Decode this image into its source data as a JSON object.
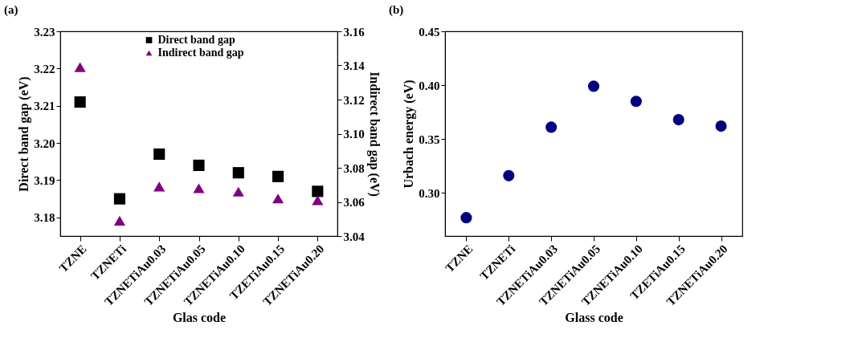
{
  "chart_data": [
    {
      "type": "scatter",
      "title": "(a)",
      "xlabel": "Glas code",
      "ylabel": "Direct band gap (eV)",
      "y2label": "Indirect band gap (eV)",
      "categories": [
        "TZNE",
        "TZNETi",
        "TZNETiAu0.03",
        "TZNETiAu0.05",
        "TZNETiAu0.10",
        "TZETiAu0.15",
        "TZNETiAu0.20"
      ],
      "series": [
        {
          "name": "Direct band gap",
          "color": "#000000",
          "marker": "square",
          "values": [
            3.211,
            3.185,
            3.197,
            3.194,
            3.192,
            3.191,
            3.187
          ]
        },
        {
          "name": "Indirect band gap",
          "color": "#800080",
          "marker": "triangle",
          "axis": "y2",
          "values": [
            3.139,
            3.049,
            3.069,
            3.068,
            3.066,
            3.062,
            3.061
          ]
        }
      ],
      "ylim": [
        3.175,
        3.23
      ],
      "yticks": [
        3.18,
        3.19,
        {
          "value": 3.2,
          "label": "3.20"
        },
        3.21,
        3.22,
        3.23
      ],
      "y2lim": [
        3.04,
        3.16
      ],
      "y2ticks": [
        3.04,
        3.06,
        3.08,
        {
          "value": 3.1,
          "label": "3.10"
        },
        3.12,
        3.14,
        3.16
      ],
      "legend": "top",
      "grid": false
    },
    {
      "type": "scatter",
      "title": "(b)",
      "xlabel": "Glass code",
      "ylabel": "Urbach energy (eV)",
      "categories": [
        "TZNE",
        "TZNETi",
        "TZNETiAu0.03",
        "TZNETiAu0.05",
        "TZNETiAu0.10",
        "TZETiAu0.15",
        "TZNETiAu0.20"
      ],
      "series": [
        {
          "color": "#000080",
          "marker": "circle",
          "values": [
            0.277,
            0.316,
            0.361,
            0.399,
            0.385,
            0.368,
            0.362
          ]
        }
      ],
      "ylim": [
        0.26,
        0.45
      ],
      "yticks": [
        {
          "value": 0.3,
          "label": "0.30"
        },
        0.35,
        {
          "value": 0.4,
          "label": "0.40"
        },
        0.45
      ],
      "legend": false,
      "grid": false
    }
  ]
}
